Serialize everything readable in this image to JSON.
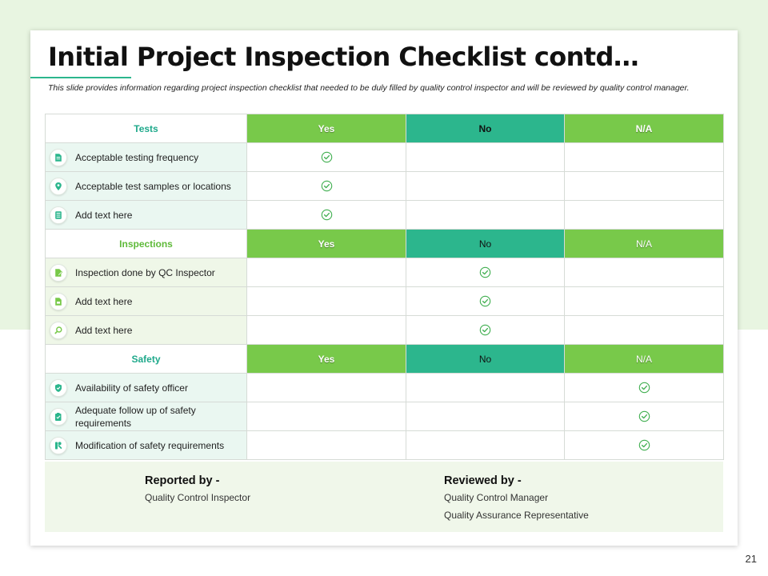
{
  "title": "Initial Project Inspection Checklist contd…",
  "subtitle": "This slide provides information regarding project inspection checklist that needed to be duly filled by quality control inspector and will be reviewed by quality control manager.",
  "columns": {
    "yes": "Yes",
    "no": "No",
    "na": "N/A"
  },
  "sections": [
    {
      "label": "Tests",
      "items": [
        {
          "text": "Acceptable testing frequency",
          "icon": "document-icon",
          "answer": "Yes"
        },
        {
          "text": "Acceptable test samples or locations",
          "icon": "location-pin-icon",
          "answer": "Yes"
        },
        {
          "text": "Add text here",
          "icon": "list-icon",
          "answer": "Yes"
        }
      ]
    },
    {
      "label": "Inspections",
      "items": [
        {
          "text": "Inspection done by QC Inspector",
          "icon": "document-edit-icon",
          "answer": "No"
        },
        {
          "text": "Add text here",
          "icon": "file-icon",
          "answer": "No"
        },
        {
          "text": "Add text here",
          "icon": "magnifier-icon",
          "answer": "No"
        }
      ]
    },
    {
      "label": "Safety",
      "items": [
        {
          "text": "Availability of safety officer",
          "icon": "shield-icon",
          "answer": "N/A"
        },
        {
          "text": "Adequate follow up of safety requirements",
          "icon": "clipboard-icon",
          "answer": "N/A"
        },
        {
          "text": "Modification of safety requirements",
          "icon": "tools-icon",
          "answer": "N/A"
        }
      ]
    }
  ],
  "footer": {
    "reported_label": "Reported by -",
    "reported_by": "Quality Control Inspector",
    "reviewed_label": "Reviewed by -",
    "reviewed_by": [
      "Quality Control Manager",
      "Quality Assurance Representative"
    ]
  },
  "page_number": "21",
  "colors": {
    "teal": "#2cb68d",
    "green": "#78c94a",
    "background_band": "#e8f5e1",
    "check": "#3fae4f"
  }
}
